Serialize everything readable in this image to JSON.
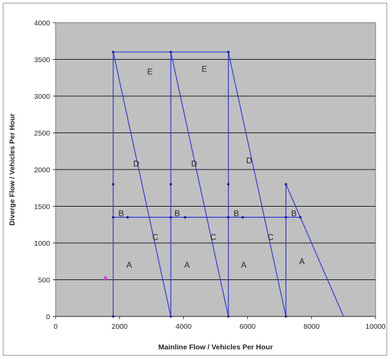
{
  "chart_data": {
    "type": "line",
    "title": "",
    "xlabel": "Mainline Flow / Vehicles Per Hour",
    "ylabel": "Diverge Flow / Vehicles Per Hour",
    "xlim": [
      0,
      10000
    ],
    "ylim": [
      0,
      4000
    ],
    "xticks": [
      0,
      2000,
      4000,
      6000,
      8000,
      10000
    ],
    "yticks": [
      0,
      500,
      1000,
      1500,
      2000,
      2500,
      3000,
      3500,
      4000
    ],
    "grid": "horizontal",
    "colors": {
      "plot_bg": "#c0c0c0",
      "lines": "#2b35d8",
      "gridline": "#1a1a1a",
      "marker": "#e040e0"
    },
    "series": [
      {
        "points": [
          [
            1800,
            0
          ],
          [
            1800,
            3600
          ]
        ]
      },
      {
        "points": [
          [
            3600,
            0
          ],
          [
            3600,
            3600
          ]
        ]
      },
      {
        "points": [
          [
            5400,
            0
          ],
          [
            5400,
            3600
          ]
        ]
      },
      {
        "points": [
          [
            7200,
            0
          ],
          [
            7200,
            1800
          ]
        ]
      },
      {
        "points": [
          [
            1800,
            3600
          ],
          [
            5400,
            3600
          ]
        ]
      },
      {
        "points": [
          [
            1800,
            1350
          ],
          [
            7650,
            1350
          ]
        ]
      },
      {
        "points": [
          [
            1800,
            3600
          ],
          [
            3600,
            0
          ]
        ]
      },
      {
        "points": [
          [
            3600,
            3600
          ],
          [
            5400,
            0
          ]
        ]
      },
      {
        "points": [
          [
            5400,
            3600
          ],
          [
            7200,
            0
          ]
        ]
      },
      {
        "points": [
          [
            7200,
            1800
          ],
          [
            9000,
            0
          ]
        ]
      }
    ],
    "breakpoints": [
      [
        1800,
        3600
      ],
      [
        3600,
        3600
      ],
      [
        5400,
        3600
      ],
      [
        1800,
        1800
      ],
      [
        3600,
        1800
      ],
      [
        5400,
        1800
      ],
      [
        7200,
        1800
      ],
      [
        1800,
        1350
      ],
      [
        2250,
        1350
      ],
      [
        3600,
        1350
      ],
      [
        4050,
        1350
      ],
      [
        5400,
        1350
      ],
      [
        5850,
        1350
      ],
      [
        7200,
        1350
      ],
      [
        7650,
        1350
      ],
      [
        1800,
        0
      ],
      [
        3600,
        0
      ],
      [
        5400,
        0
      ],
      [
        7200,
        0
      ]
    ],
    "point": {
      "x": 1560,
      "y": 520
    },
    "regions": [
      {
        "label": "E",
        "x": 2950,
        "y": 3330
      },
      {
        "label": "E",
        "x": 4650,
        "y": 3370
      },
      {
        "label": "D",
        "x": 2520,
        "y": 2080
      },
      {
        "label": "D",
        "x": 4330,
        "y": 2080
      },
      {
        "label": "D",
        "x": 6050,
        "y": 2120
      },
      {
        "label": "B",
        "x": 2050,
        "y": 1400
      },
      {
        "label": "B",
        "x": 3800,
        "y": 1400
      },
      {
        "label": "B",
        "x": 5650,
        "y": 1400
      },
      {
        "label": "B",
        "x": 7450,
        "y": 1400
      },
      {
        "label": "C",
        "x": 3120,
        "y": 1080
      },
      {
        "label": "C",
        "x": 4930,
        "y": 1080
      },
      {
        "label": "C",
        "x": 6720,
        "y": 1080
      },
      {
        "label": "A",
        "x": 2300,
        "y": 700
      },
      {
        "label": "A",
        "x": 4110,
        "y": 700
      },
      {
        "label": "A",
        "x": 5880,
        "y": 700
      },
      {
        "label": "A",
        "x": 7700,
        "y": 750
      }
    ]
  }
}
